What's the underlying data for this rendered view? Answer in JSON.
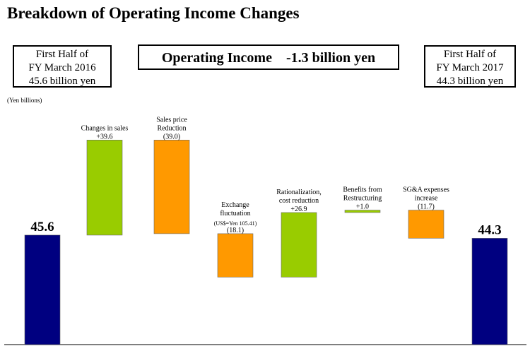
{
  "title": "Breakdown of Operating Income Changes",
  "left_box": {
    "line1": "First Half of",
    "line2": "FY March 2016",
    "line3": "45.6 billion yen"
  },
  "center_box": {
    "label": "Operating Income    -1.3 billion yen"
  },
  "right_box": {
    "line1": "First Half of",
    "line2": "FY March 2017",
    "line3": "44.3 billion yen"
  },
  "unit_note": "(Yen billions)",
  "colors": {
    "navy": "#000080",
    "green": "#99cc00",
    "orange": "#ff9900"
  },
  "chart_data": {
    "type": "bar",
    "subtype": "waterfall",
    "categories": [
      "First Half of FY March 2016",
      "Changes in sales",
      "Sales price Reduction",
      "Exchange fluctuation",
      "Rationalization, cost reduction",
      "Benefits from Restructuring",
      "SG&A expenses increase",
      "First Half of FY March 2017"
    ],
    "values": [
      45.6,
      39.6,
      -39.0,
      -18.1,
      26.9,
      1.0,
      -11.7,
      44.3
    ],
    "bar_kinds": [
      "total",
      "increase",
      "decrease",
      "decrease",
      "increase",
      "increase",
      "decrease",
      "total"
    ],
    "colors": [
      "#000080",
      "#99cc00",
      "#ff9900",
      "#ff9900",
      "#99cc00",
      "#99cc00",
      "#ff9900",
      "#000080"
    ],
    "label_lines": [
      [],
      [
        "Changes in sales"
      ],
      [
        "Sales price",
        "Reduction"
      ],
      [
        "Exchange",
        "fluctuation",
        "(US$=Yen 105.41)"
      ],
      [
        "Rationalization,",
        "cost reduction"
      ],
      [
        "Benefits from",
        "Restructuring"
      ],
      [
        "SG&A expenses",
        "increase"
      ],
      []
    ],
    "value_labels": [
      "45.6",
      "+39.6",
      "(39.0)",
      "(18.1)",
      "+26.9",
      "+1.0",
      "(11.7)",
      "44.3"
    ],
    "ylabel": "(Yen billions)"
  }
}
